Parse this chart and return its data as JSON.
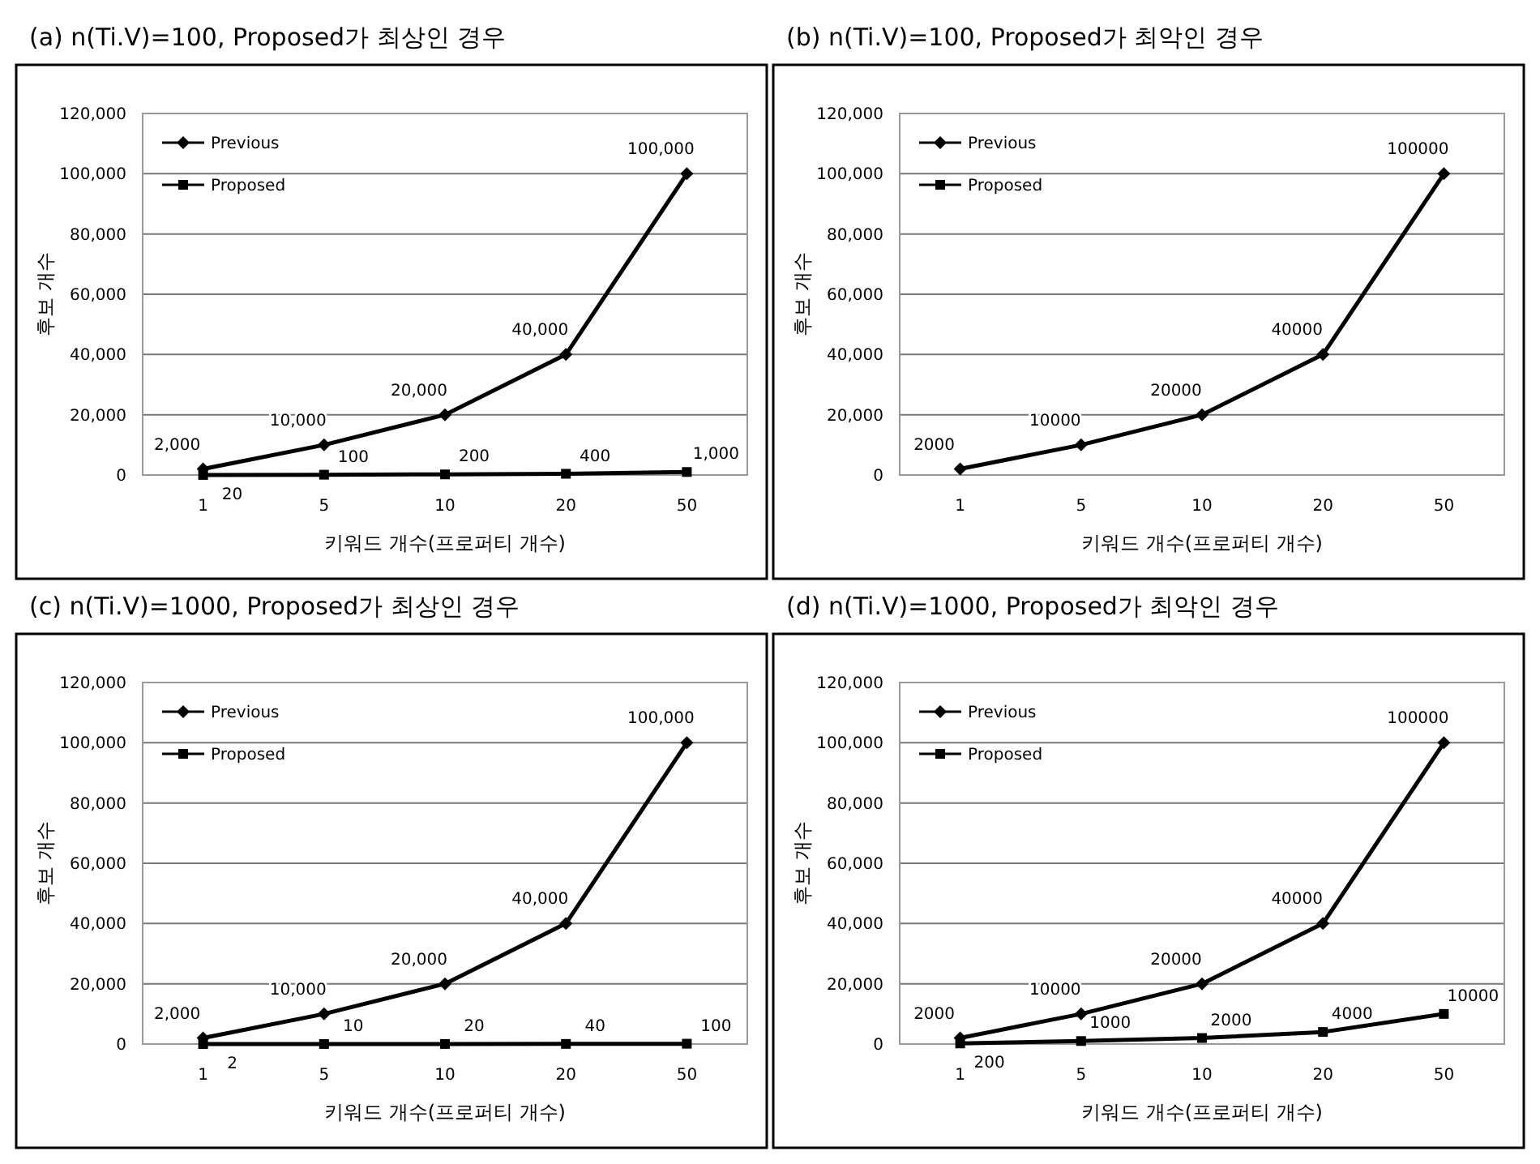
{
  "chart_data": [
    {
      "type": "line",
      "title": "(a) n(Ti.V)=100, Proposed가 최상인 경우",
      "xlabel": "키워드 개수(프로퍼티 개수)",
      "ylabel": "후보 개수",
      "categories": [
        "1",
        "5",
        "10",
        "20",
        "50"
      ],
      "ylim": [
        0,
        120000
      ],
      "yticks": [
        {
          "value": 0,
          "label": "0"
        },
        {
          "value": 20000,
          "label": "20,000"
        },
        {
          "value": 40000,
          "label": "40,000"
        },
        {
          "value": 60000,
          "label": "60,000"
        },
        {
          "value": 80000,
          "label": "80,000"
        },
        {
          "value": 100000,
          "label": "100,000"
        },
        {
          "value": 120000,
          "label": "120,000"
        }
      ],
      "grid": "y",
      "legend": "top left",
      "series": [
        {
          "name": "Previous",
          "color": "#000000",
          "marker": "diamond",
          "values": [
            2000,
            10000,
            20000,
            40000,
            100000
          ],
          "value_labels": [
            "2,000",
            "10,000",
            "20,000",
            "40,000",
            "100,000"
          ]
        },
        {
          "name": "Proposed",
          "color": "#000000",
          "marker": "square",
          "values": [
            20,
            100,
            200,
            400,
            1000
          ],
          "value_labels": [
            "20",
            "100",
            "200",
            "400",
            "1,000"
          ]
        }
      ]
    },
    {
      "type": "line",
      "title": "(b) n(Ti.V)=100, Proposed가 최악인 경우",
      "xlabel": "키워드 개수(프로퍼티 개수)",
      "ylabel": "후보 개수",
      "categories": [
        "1",
        "5",
        "10",
        "20",
        "50"
      ],
      "ylim": [
        0,
        120000
      ],
      "yticks": [
        {
          "value": 0,
          "label": "0"
        },
        {
          "value": 20000,
          "label": "20,000"
        },
        {
          "value": 40000,
          "label": "40,000"
        },
        {
          "value": 60000,
          "label": "60,000"
        },
        {
          "value": 80000,
          "label": "80,000"
        },
        {
          "value": 100000,
          "label": "100,000"
        },
        {
          "value": 120000,
          "label": "120,000"
        }
      ],
      "grid": "y",
      "legend": "top left",
      "series": [
        {
          "name": "Previous",
          "color": "#000000",
          "marker": "diamond",
          "values": [
            2000,
            10000,
            20000,
            40000,
            100000
          ],
          "value_labels": [
            "2000",
            "10000",
            "20000",
            "40000",
            "100000"
          ]
        },
        {
          "name": "Proposed",
          "color": "#000000",
          "marker": "square",
          "values": [
            null,
            null,
            null,
            null,
            null
          ]
        }
      ]
    },
    {
      "type": "line",
      "title": "(c) n(Ti.V)=1000, Proposed가 최상인 경우",
      "xlabel": "키워드 개수(프로퍼티 개수)",
      "ylabel": "후보 개수",
      "categories": [
        "1",
        "5",
        "10",
        "20",
        "50"
      ],
      "ylim": [
        0,
        120000
      ],
      "yticks": [
        {
          "value": 0,
          "label": "0"
        },
        {
          "value": 20000,
          "label": "20,000"
        },
        {
          "value": 40000,
          "label": "40,000"
        },
        {
          "value": 60000,
          "label": "60,000"
        },
        {
          "value": 80000,
          "label": "80,000"
        },
        {
          "value": 100000,
          "label": "100,000"
        },
        {
          "value": 120000,
          "label": "120,000"
        }
      ],
      "grid": "y",
      "legend": "top left",
      "series": [
        {
          "name": "Previous",
          "color": "#000000",
          "marker": "diamond",
          "values": [
            2000,
            10000,
            20000,
            40000,
            100000
          ],
          "value_labels": [
            "2,000",
            "10,000",
            "20,000",
            "40,000",
            "100,000"
          ]
        },
        {
          "name": "Proposed",
          "color": "#000000",
          "marker": "square",
          "values": [
            2,
            10,
            20,
            40,
            100
          ],
          "value_labels": [
            "2",
            "10",
            "20",
            "40",
            "100"
          ]
        }
      ]
    },
    {
      "type": "line",
      "title": "(d) n(Ti.V)=1000, Proposed가 최악인 경우",
      "xlabel": "키워드 개수(프로퍼티 개수)",
      "ylabel": "후보 개수",
      "categories": [
        "1",
        "5",
        "10",
        "20",
        "50"
      ],
      "ylim": [
        0,
        120000
      ],
      "yticks": [
        {
          "value": 0,
          "label": "0"
        },
        {
          "value": 20000,
          "label": "20,000"
        },
        {
          "value": 40000,
          "label": "40,000"
        },
        {
          "value": 60000,
          "label": "60,000"
        },
        {
          "value": 80000,
          "label": "80,000"
        },
        {
          "value": 100000,
          "label": "100,000"
        },
        {
          "value": 120000,
          "label": "120,000"
        }
      ],
      "grid": "y",
      "legend": "top left",
      "series": [
        {
          "name": "Previous",
          "color": "#000000",
          "marker": "diamond",
          "values": [
            2000,
            10000,
            20000,
            40000,
            100000
          ],
          "value_labels": [
            "2000",
            "10000",
            "20000",
            "40000",
            "100000"
          ]
        },
        {
          "name": "Proposed",
          "color": "#000000",
          "marker": "square",
          "values": [
            200,
            1000,
            2000,
            4000,
            10000
          ],
          "value_labels": [
            "200",
            "1000",
            "2000",
            "4000",
            "10000"
          ]
        }
      ]
    }
  ]
}
